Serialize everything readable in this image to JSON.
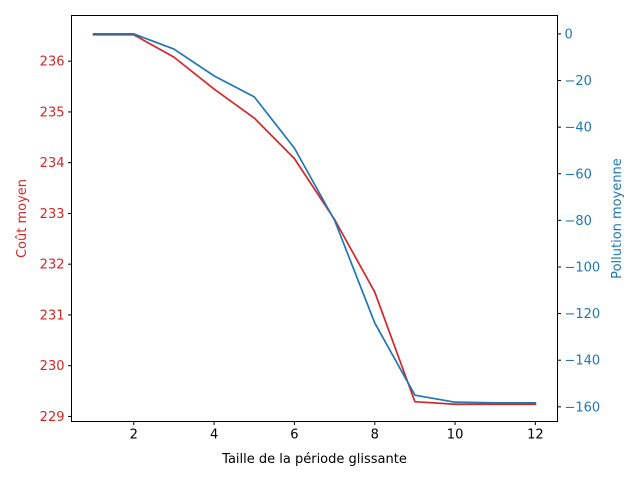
{
  "chart_data": {
    "type": "line",
    "title": "",
    "xlabel": "Taille de la période glissante",
    "ylabel_left": "Coût moyen",
    "ylabel_right": "Pollution moyenne",
    "x": [
      1,
      2,
      3,
      4,
      5,
      6,
      7,
      8,
      9,
      10,
      11,
      12
    ],
    "xlim": [
      0.45,
      12.55
    ],
    "xticks": [
      2,
      4,
      6,
      8,
      10,
      12
    ],
    "series": [
      {
        "axis": "left",
        "color": "#d62728",
        "values": [
          236.52,
          236.52,
          236.08,
          235.45,
          234.88,
          234.08,
          232.88,
          231.45,
          229.29,
          229.24,
          229.24,
          229.24
        ]
      },
      {
        "axis": "right",
        "color": "#1f77b4",
        "values": [
          0,
          0,
          -6.5,
          -18,
          -27,
          -49,
          -80,
          -124,
          -155,
          -158,
          -158.3,
          -158.3
        ]
      }
    ],
    "ylim_left": [
      228.9,
      236.9
    ],
    "yticks_left": [
      229,
      230,
      231,
      232,
      233,
      234,
      235,
      236
    ],
    "ylim_right": [
      -166.3,
      7.9
    ],
    "yticks_right": [
      0,
      -20,
      -40,
      -60,
      -80,
      -100,
      -120,
      -140,
      -160
    ],
    "left_axis_color": "#d62728",
    "right_axis_color": "#1f77b4",
    "grid": false,
    "legend": "none"
  }
}
